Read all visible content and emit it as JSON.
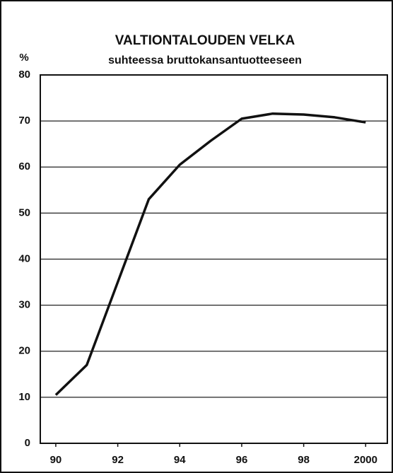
{
  "chart_data": {
    "type": "line",
    "title": "VALTIONTALOUDEN VELKA",
    "subtitle": "suhteessa bruttokansantuotteeseen",
    "y_label": "%",
    "x": [
      1990,
      1991,
      1992,
      1993,
      1994,
      1995,
      1996,
      1997,
      1998,
      1999,
      2000
    ],
    "series": [
      {
        "name": "Velka",
        "color": "#111111",
        "values": [
          10.5,
          17,
          35,
          53,
          60.5,
          65.7,
          70.5,
          71.6,
          71.4,
          70.8,
          69.7
        ]
      }
    ],
    "xlim": [
      1989.5,
      2000.7
    ],
    "xticks": [
      {
        "value": 1990,
        "label": "90"
      },
      {
        "value": 1992,
        "label": "92"
      },
      {
        "value": 1994,
        "label": "94"
      },
      {
        "value": 1996,
        "label": "96"
      },
      {
        "value": 1998,
        "label": "98"
      },
      2000
    ],
    "ylim": [
      0,
      80
    ],
    "yticks": [
      0,
      10,
      20,
      30,
      40,
      50,
      60,
      70,
      80
    ],
    "grid": true
  }
}
